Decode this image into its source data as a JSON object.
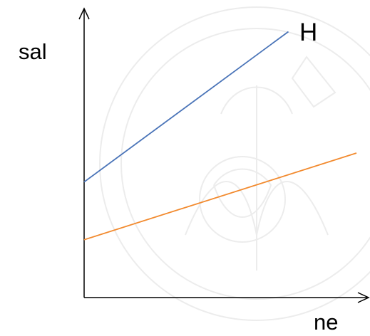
{
  "chart_data": {
    "type": "line",
    "xlabel": "ne",
    "ylabel": "sal",
    "series": [
      {
        "name": "H",
        "color": "#4a74b8",
        "values": [
          0.4,
          0.92
        ]
      },
      {
        "name": "",
        "color": "#f28a2e",
        "values": [
          0.2,
          0.5
        ]
      }
    ],
    "x": [
      0,
      1
    ],
    "ylim": [
      0,
      1
    ]
  }
}
